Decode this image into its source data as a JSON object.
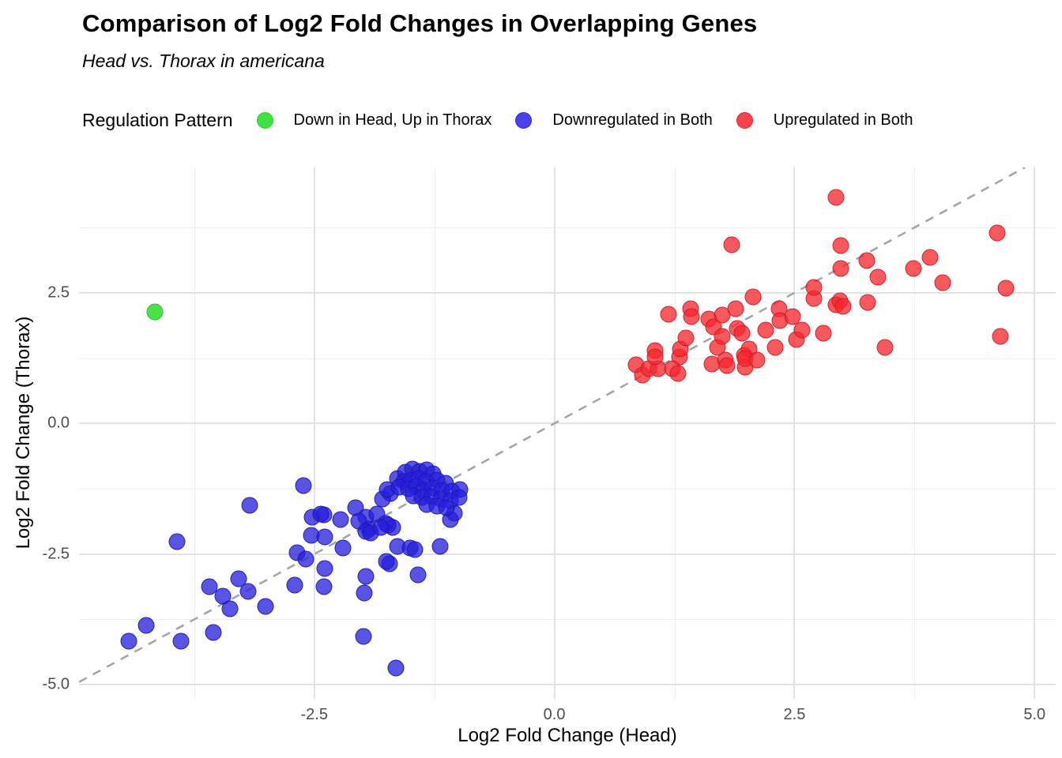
{
  "header": {
    "title": "Comparison of Log2 Fold Changes in Overlapping Genes",
    "subtitle": "Head vs. Thorax in americana"
  },
  "legend": {
    "title": "Regulation Pattern",
    "items": [
      {
        "label": "Down in Head, Up in Thorax",
        "color": "#3fe33f",
        "border": "#33cc33"
      },
      {
        "label": "Downregulated in Both",
        "color": "#4a42e8",
        "border": "#332bd6"
      },
      {
        "label": "Upregulated in Both",
        "color": "#f4434b",
        "border": "#db2a31"
      }
    ]
  },
  "chart_data": {
    "type": "scatter",
    "title": "Comparison of Log2 Fold Changes in Overlapping Genes",
    "subtitle": "Head vs. Thorax in americana",
    "xlabel": "Log2 Fold Change (Head)",
    "ylabel": "Log2 Fold Change (Thorax)",
    "xlim": [
      -4.95,
      5.22
    ],
    "ylim": [
      -5.27,
      4.9
    ],
    "grid": true,
    "legend_position": "top",
    "x_major_ticks": [
      -2.5,
      0.0,
      2.5,
      5.0
    ],
    "x_tick_labels": [
      "-2.5",
      "0.0",
      "2.5",
      "5.0"
    ],
    "x_minor_ticks": [
      -3.75,
      -1.25,
      1.25,
      3.75
    ],
    "y_major_ticks": [
      2.5,
      0.0,
      -2.5,
      -5.0
    ],
    "y_tick_labels": [
      "2.5",
      "0.0",
      "-2.5",
      "-5.0"
    ],
    "y_minor_ticks": [
      3.75,
      1.25,
      -1.25,
      -3.75
    ],
    "reference_line": {
      "slope": 1,
      "intercept": 0,
      "style": "dashed",
      "color": "#a3a3a3",
      "width": 2.5,
      "dash": "11,9"
    },
    "series": [
      {
        "name": "Down in Head, Up in Thorax",
        "fill": "rgba(44,220,44,0.85)",
        "stroke": "rgba(40,190,40,0.9)",
        "points": [
          [
            -4.16,
            2.14
          ]
        ]
      },
      {
        "name": "Downregulated in Both",
        "fill": "rgba(37,30,220,0.76)",
        "stroke": "rgba(25,20,170,0.85)",
        "points": [
          [
            -2.61,
            -1.19
          ],
          [
            -3.17,
            -1.57
          ],
          [
            -3.93,
            -2.27
          ],
          [
            -2.52,
            -1.79
          ],
          [
            -2.4,
            -1.75
          ],
          [
            -2.23,
            -1.84
          ],
          [
            -2.43,
            -1.73
          ],
          [
            -2.53,
            -2.14
          ],
          [
            -2.39,
            -2.17
          ],
          [
            -2.68,
            -2.47
          ],
          [
            -2.59,
            -2.59
          ],
          [
            -2.39,
            -2.77
          ],
          [
            -2.7,
            -3.1
          ],
          [
            -2.4,
            -3.12
          ],
          [
            -3.29,
            -2.97
          ],
          [
            -3.19,
            -3.22
          ],
          [
            -3.59,
            -3.12
          ],
          [
            -3.45,
            -3.3
          ],
          [
            -3.01,
            -3.5
          ],
          [
            -3.38,
            -3.55
          ],
          [
            -4.25,
            -3.86
          ],
          [
            -4.43,
            -4.17
          ],
          [
            -3.89,
            -4.17
          ],
          [
            -3.55,
            -4.0
          ],
          [
            -2.07,
            -1.61
          ],
          [
            -2.2,
            -2.39
          ],
          [
            -1.96,
            -2.93
          ],
          [
            -1.98,
            -3.24
          ],
          [
            -1.99,
            -4.08
          ],
          [
            -1.65,
            -4.68
          ],
          [
            -1.72,
            -2.68
          ],
          [
            -1.63,
            -2.35
          ],
          [
            -1.5,
            -2.39
          ],
          [
            -1.45,
            -2.42
          ],
          [
            -1.19,
            -2.35
          ],
          [
            -1.42,
            -2.89
          ],
          [
            -1.75,
            -2.64
          ],
          [
            -1.96,
            -1.79
          ],
          [
            -1.85,
            -1.74
          ],
          [
            -1.93,
            -2.02
          ],
          [
            -1.76,
            -1.91
          ],
          [
            -2.04,
            -1.87
          ],
          [
            -1.96,
            -2.06
          ],
          [
            -1.91,
            -2.09
          ],
          [
            -1.68,
            -1.99
          ],
          [
            -1.73,
            -1.94
          ],
          [
            -1.81,
            -1.99
          ],
          [
            -1.71,
            -1.34
          ],
          [
            -1.79,
            -1.44
          ],
          [
            -1.74,
            -1.26
          ],
          [
            -1.04,
            -1.72
          ],
          [
            -1.08,
            -1.84
          ],
          [
            -1.63,
            -1.05
          ],
          [
            -1.55,
            -0.94
          ],
          [
            -1.48,
            -0.87
          ],
          [
            -1.4,
            -0.92
          ],
          [
            -1.33,
            -0.89
          ],
          [
            -1.26,
            -0.97
          ],
          [
            -1.57,
            -1.12
          ],
          [
            -1.49,
            -1.08
          ],
          [
            -1.41,
            -1.05
          ],
          [
            -1.34,
            -1.12
          ],
          [
            -1.22,
            -1.08
          ],
          [
            -1.13,
            -1.14
          ],
          [
            -1.62,
            -1.22
          ],
          [
            -1.52,
            -1.25
          ],
          [
            -1.44,
            -1.2
          ],
          [
            -1.36,
            -1.28
          ],
          [
            -1.27,
            -1.24
          ],
          [
            -1.17,
            -1.28
          ],
          [
            -1.07,
            -1.3
          ],
          [
            -0.98,
            -1.27
          ],
          [
            -1.47,
            -1.38
          ],
          [
            -1.38,
            -1.42
          ],
          [
            -1.28,
            -1.4
          ],
          [
            -1.18,
            -1.45
          ],
          [
            -1.08,
            -1.48
          ],
          [
            -0.99,
            -1.42
          ],
          [
            -1.33,
            -1.55
          ],
          [
            -1.22,
            -1.58
          ],
          [
            -1.12,
            -1.62
          ]
        ]
      },
      {
        "name": "Upregulated in Both",
        "fill": "rgba(246,37,45,0.76)",
        "stroke": "rgba(200,25,32,0.85)",
        "points": [
          [
            0.85,
            1.12
          ],
          [
            0.92,
            0.93
          ],
          [
            0.98,
            1.04
          ],
          [
            1.08,
            1.04
          ],
          [
            1.05,
            1.4
          ],
          [
            1.05,
            1.27
          ],
          [
            1.19,
            2.09
          ],
          [
            1.3,
            1.27
          ],
          [
            1.31,
            1.42
          ],
          [
            1.23,
            1.04
          ],
          [
            1.29,
            0.95
          ],
          [
            1.37,
            1.64
          ],
          [
            1.42,
            2.2
          ],
          [
            1.43,
            2.05
          ],
          [
            1.61,
            2.0
          ],
          [
            1.66,
            1.85
          ],
          [
            1.7,
            1.45
          ],
          [
            1.75,
            2.08
          ],
          [
            1.75,
            1.67
          ],
          [
            1.64,
            1.14
          ],
          [
            1.78,
            1.22
          ],
          [
            1.8,
            1.1
          ],
          [
            1.89,
            2.2
          ],
          [
            1.9,
            1.82
          ],
          [
            1.95,
            1.72
          ],
          [
            1.98,
            1.3
          ],
          [
            1.99,
            1.07
          ],
          [
            2.03,
            1.42
          ],
          [
            1.99,
            1.25
          ],
          [
            2.07,
            2.42
          ],
          [
            2.11,
            1.22
          ],
          [
            2.2,
            1.79
          ],
          [
            2.3,
            1.45
          ],
          [
            2.34,
            2.2
          ],
          [
            2.35,
            1.97
          ],
          [
            2.48,
            2.05
          ],
          [
            2.52,
            1.6
          ],
          [
            2.58,
            1.79
          ],
          [
            2.7,
            2.39
          ],
          [
            2.8,
            1.72
          ],
          [
            2.93,
            2.27
          ],
          [
            2.93,
            4.32
          ],
          [
            1.85,
            3.42
          ],
          [
            4.61,
            3.64
          ],
          [
            2.98,
            3.4
          ],
          [
            3.25,
            3.12
          ],
          [
            3.91,
            3.18
          ],
          [
            3.74,
            2.97
          ],
          [
            2.98,
            2.97
          ],
          [
            3.37,
            2.8
          ],
          [
            4.04,
            2.7
          ],
          [
            4.7,
            2.59
          ],
          [
            2.7,
            2.6
          ],
          [
            2.97,
            2.35
          ],
          [
            3.01,
            2.24
          ],
          [
            3.26,
            2.32
          ],
          [
            3.44,
            1.46
          ],
          [
            4.64,
            1.67
          ]
        ]
      }
    ]
  }
}
